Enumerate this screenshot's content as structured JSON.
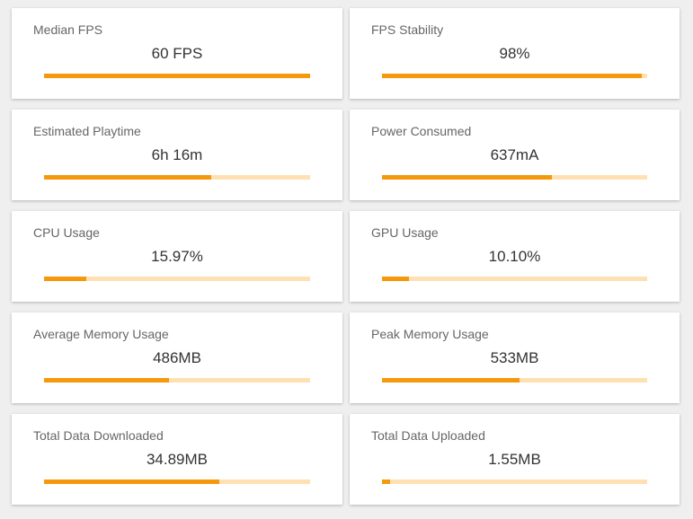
{
  "cards": [
    {
      "label": "Median FPS",
      "value": "60 FPS",
      "progress": 100
    },
    {
      "label": "FPS Stability",
      "value": "98%",
      "progress": 98
    },
    {
      "label": "Estimated Playtime",
      "value": "6h 16m",
      "progress": 63
    },
    {
      "label": "Power Consumed",
      "value": "637mA",
      "progress": 64
    },
    {
      "label": "CPU Usage",
      "value": "15.97%",
      "progress": 16
    },
    {
      "label": "GPU Usage",
      "value": "10.10%",
      "progress": 10
    },
    {
      "label": "Average Memory Usage",
      "value": "486MB",
      "progress": 47
    },
    {
      "label": "Peak Memory Usage",
      "value": "533MB",
      "progress": 52
    },
    {
      "label": "Total Data Downloaded",
      "value": "34.89MB",
      "progress": 66
    },
    {
      "label": "Total Data Uploaded",
      "value": "1.55MB",
      "progress": 3
    }
  ]
}
